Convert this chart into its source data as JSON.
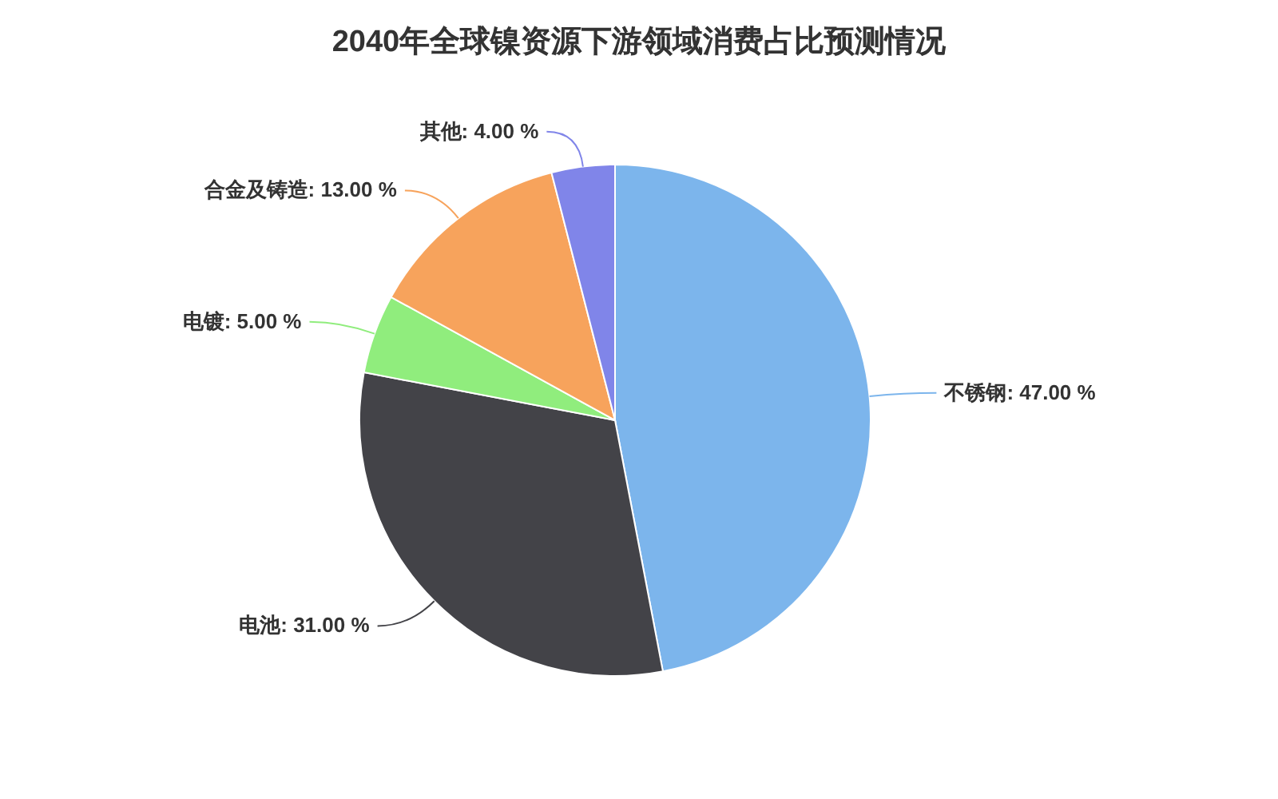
{
  "chart_data": {
    "type": "pie",
    "title": "2040年全球镍资源下游领域消费占比预测情况",
    "categories": [
      "不锈钢",
      "电池",
      "电镀",
      "合金及铸造",
      "其他"
    ],
    "values": [
      47,
      31,
      5,
      13,
      4
    ],
    "value_labels": [
      "47.00 %",
      "31.00 %",
      "5.00 %",
      "13.00 %",
      "4.00 %"
    ],
    "colors": [
      "#7cb5ec",
      "#434348",
      "#90ed7d",
      "#f7a35c",
      "#8085e9"
    ]
  }
}
